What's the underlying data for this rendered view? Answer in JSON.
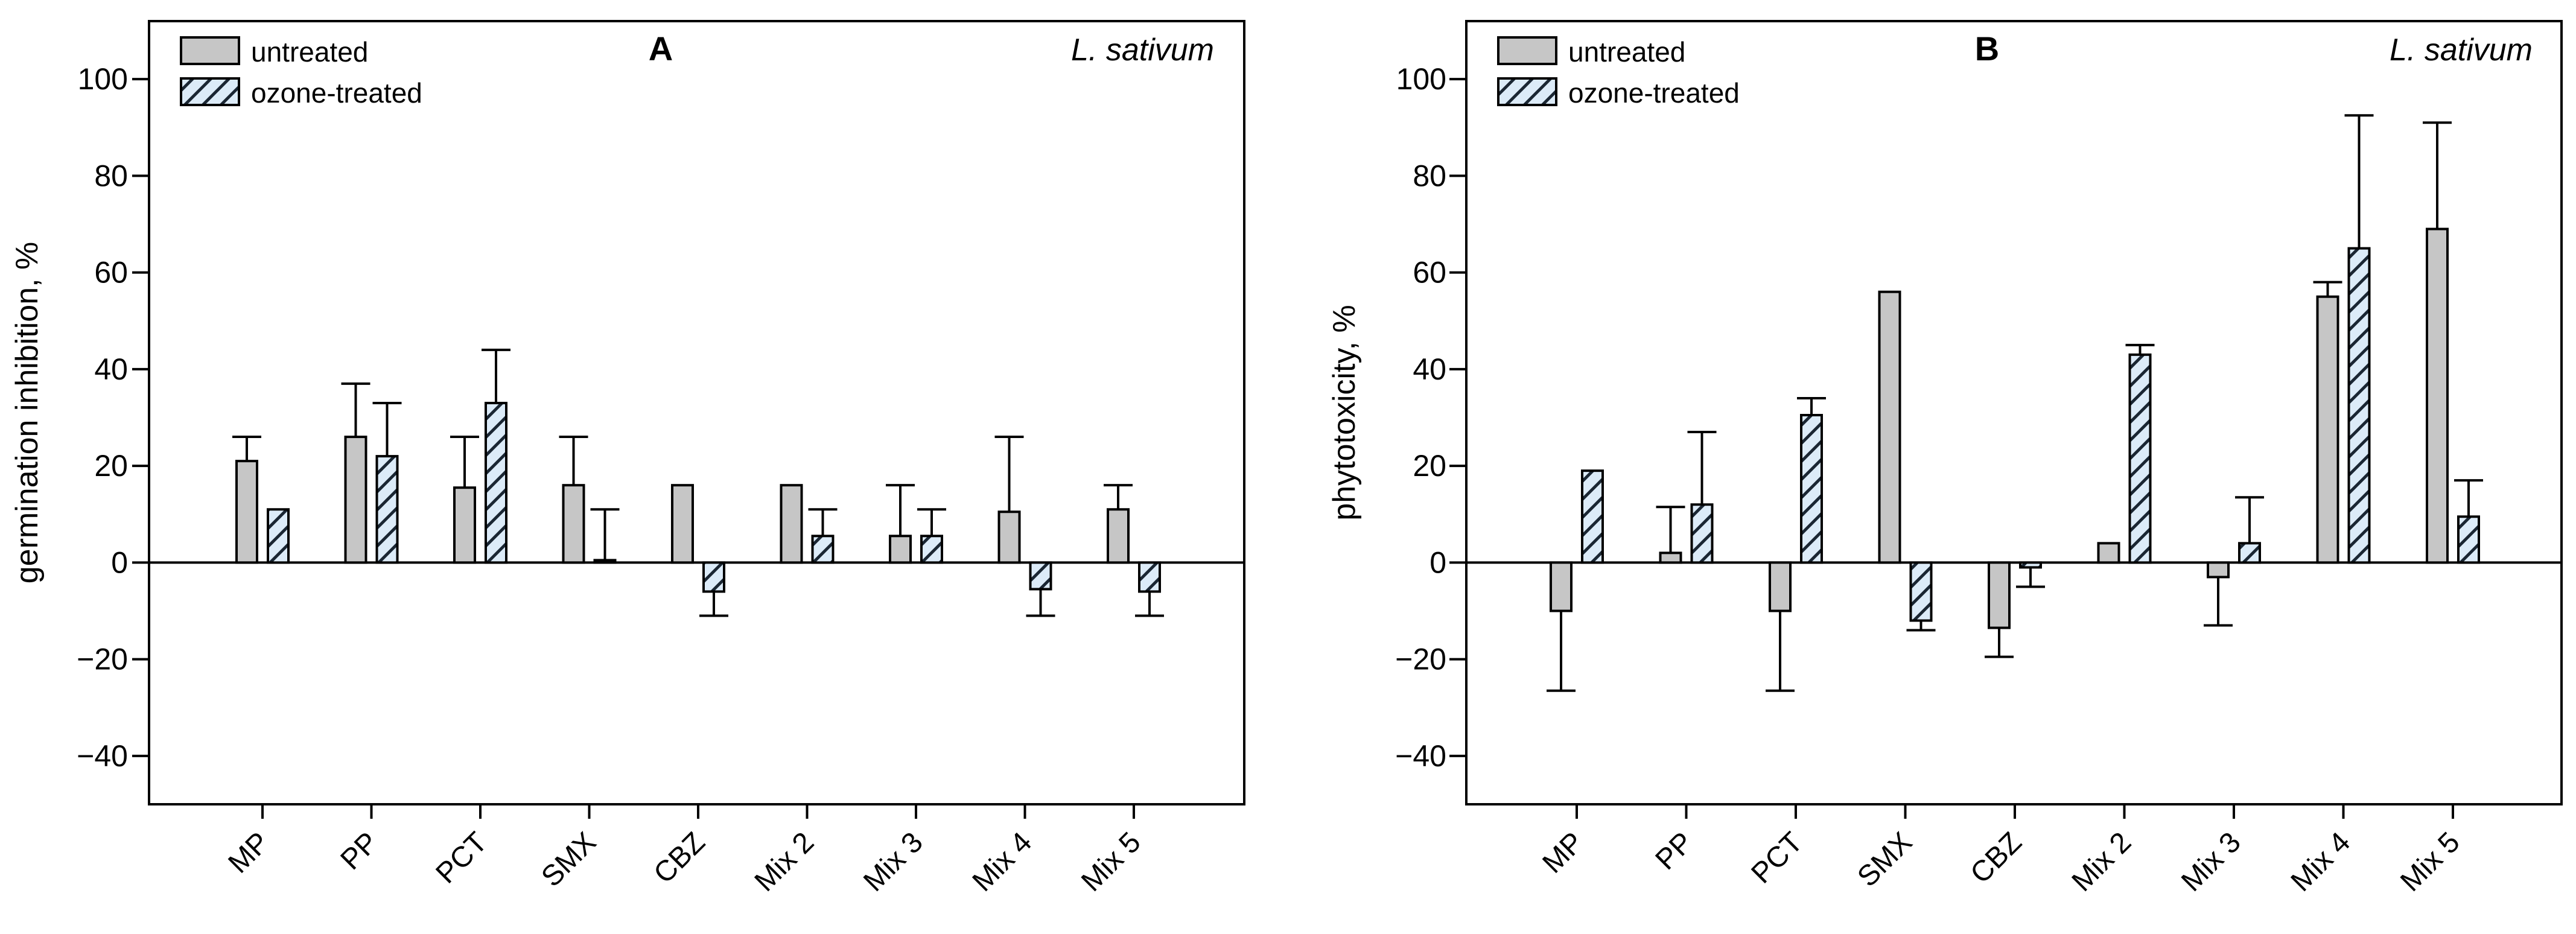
{
  "figure": {
    "background": "#ffffff",
    "legend": {
      "items": [
        {
          "label": "untreated",
          "swatch": "gray-filled"
        },
        {
          "label": "ozone-treated",
          "swatch": "blue-hatched"
        }
      ]
    },
    "colors": {
      "untreated_fill": "#c6c6c6",
      "ozone_fill": "#dcebf8",
      "hatch_line": "#1a2633",
      "bar_stroke": "#000000",
      "axis": "#000000"
    }
  },
  "chart_data": [
    {
      "type": "bar",
      "panel_letter": "A",
      "annotation": "L. sativum",
      "ylabel": "germination inhibition, %",
      "xlabel": "",
      "grid": false,
      "legend_position": "top-left",
      "ylim": [
        -50,
        112
      ],
      "yticks": [
        -40,
        -20,
        0,
        20,
        40,
        60,
        80,
        100
      ],
      "categories": [
        "MP",
        "PP",
        "PCT",
        "SMX",
        "CBZ",
        "Mix 2",
        "Mix 3",
        "Mix 4",
        "Mix 5"
      ],
      "series": [
        {
          "name": "untreated",
          "values": [
            21,
            26,
            15.5,
            16,
            16,
            16,
            5.5,
            10.5,
            11
          ],
          "error_tips": [
            26,
            37,
            26,
            26,
            null,
            null,
            16,
            26,
            16
          ]
        },
        {
          "name": "ozone-treated",
          "values": [
            11,
            22,
            33,
            0.5,
            -6,
            5.5,
            5.5,
            -5.5,
            -6
          ],
          "error_tips": [
            null,
            33,
            44,
            11,
            -11,
            11,
            11,
            -11,
            -11
          ]
        }
      ]
    },
    {
      "type": "bar",
      "panel_letter": "B",
      "annotation": "L. sativum",
      "ylabel": "phytotoxicity, %",
      "xlabel": "",
      "grid": false,
      "legend_position": "top-left",
      "ylim": [
        -50,
        112
      ],
      "yticks": [
        -40,
        -20,
        0,
        20,
        40,
        60,
        80,
        100
      ],
      "categories": [
        "MP",
        "PP",
        "PCT",
        "SMX",
        "CBZ",
        "Mix 2",
        "Mix 3",
        "Mix 4",
        "Mix 5"
      ],
      "series": [
        {
          "name": "untreated",
          "values": [
            -10,
            2,
            -10,
            56,
            -13.5,
            4,
            -3,
            55,
            69
          ],
          "error_tips": [
            -26.5,
            11.5,
            -26.5,
            null,
            -19.5,
            null,
            -13,
            58,
            91
          ]
        },
        {
          "name": "ozone-treated",
          "values": [
            19,
            12,
            30.5,
            -12,
            -1,
            43,
            4,
            65,
            9.5
          ],
          "error_tips": [
            null,
            27,
            34,
            -14,
            -5,
            45,
            13.5,
            92.5,
            17
          ]
        }
      ]
    }
  ]
}
